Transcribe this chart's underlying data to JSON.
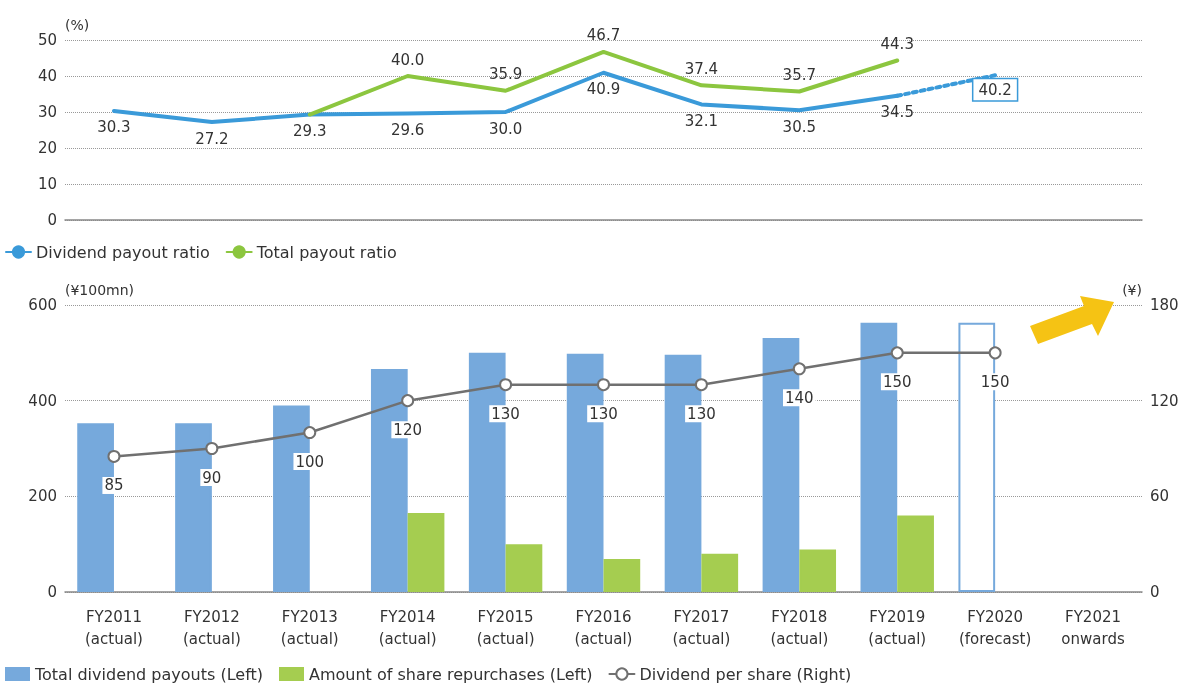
{
  "chart_data": [
    {
      "type": "line",
      "ylabel": "(%)",
      "categories": [
        null,
        null,
        null,
        null,
        null,
        null,
        null,
        null,
        null,
        null,
        null
      ],
      "ylim": [
        0,
        50
      ],
      "yticks": [
        0,
        10,
        20,
        30,
        40,
        50
      ],
      "grid": "y",
      "legend": "bottom",
      "tick_labels": "y",
      "marker": "none",
      "series": [
        {
          "name": "Dividend payout ratio",
          "color": "#3a9ad9",
          "values": [
            30.3,
            27.2,
            29.3,
            29.6,
            30.0,
            40.9,
            32.1,
            30.5,
            34.5,
            null,
            null
          ],
          "value_labels": [
            "30.3",
            "27.2",
            "29.3",
            "29.6",
            "30.0",
            "40.9",
            "32.1",
            "30.5",
            "34.5",
            null,
            null
          ],
          "line_style": "solid"
        },
        {
          "name": "Total payout ratio",
          "color": "#8cc63f",
          "values": [
            null,
            null,
            29.3,
            40.0,
            35.9,
            46.7,
            37.4,
            35.7,
            44.3,
            null,
            null
          ],
          "value_labels": [
            null,
            null,
            null,
            "40.0",
            "35.9",
            "46.7",
            "37.4",
            "35.7",
            "44.3",
            null,
            null
          ],
          "line_style": "solid"
        },
        {
          "color": "#3a9ad9",
          "values": [
            null,
            null,
            null,
            null,
            null,
            null,
            null,
            null,
            34.5,
            40.2,
            null
          ],
          "value_labels": [
            null,
            null,
            null,
            null,
            null,
            null,
            null,
            null,
            null,
            "40.2",
            null
          ],
          "line_style": "dotted"
        }
      ]
    },
    {
      "type": "bar",
      "ylabel": "(¥100mn)",
      "y2label": "(¥)",
      "categories": [
        "FY2011\n(actual)",
        "FY2012\n(actual)",
        "FY2013\n(actual)",
        "FY2014\n(actual)",
        "FY2015\n(actual)",
        "FY2016\n(actual)",
        "FY2017\n(actual)",
        "FY2018\n(actual)",
        "FY2019\n(actual)",
        "FY2020\n(forecast)",
        "FY2021\nonwards"
      ],
      "ylim": [
        0,
        600
      ],
      "yticks": [
        0,
        200,
        400,
        600
      ],
      "y2lim": [
        0,
        180
      ],
      "y2ticks": [
        0,
        60,
        120,
        180
      ],
      "grid": "y",
      "legend": "bottom",
      "series": [
        {
          "name": "Total dividend payouts (Left)",
          "color": "#76a9dc",
          "colors": [
            "#76a9dc",
            "#76a9dc",
            "#76a9dc",
            "#76a9dc",
            "#76a9dc",
            "#76a9dc",
            "#76a9dc",
            "#76a9dc",
            "#76a9dc",
            "#ffffff",
            "#76a9dc"
          ],
          "values": [
            353,
            353,
            390,
            466,
            500,
            498,
            496,
            531,
            563,
            563,
            null
          ]
        },
        {
          "name": "Amount of share repurchases (Left)",
          "color": "#a5cd50",
          "values": [
            null,
            null,
            null,
            165,
            100,
            69,
            80,
            89,
            160,
            null,
            null
          ]
        },
        {
          "name": "Dividend per share (Right)",
          "type": "line",
          "axis": "y2",
          "color": "#707070",
          "marker": "circle",
          "data_labels": true,
          "values": [
            85,
            90,
            100,
            120,
            130,
            130,
            130,
            140,
            150,
            150,
            null
          ]
        }
      ]
    }
  ]
}
